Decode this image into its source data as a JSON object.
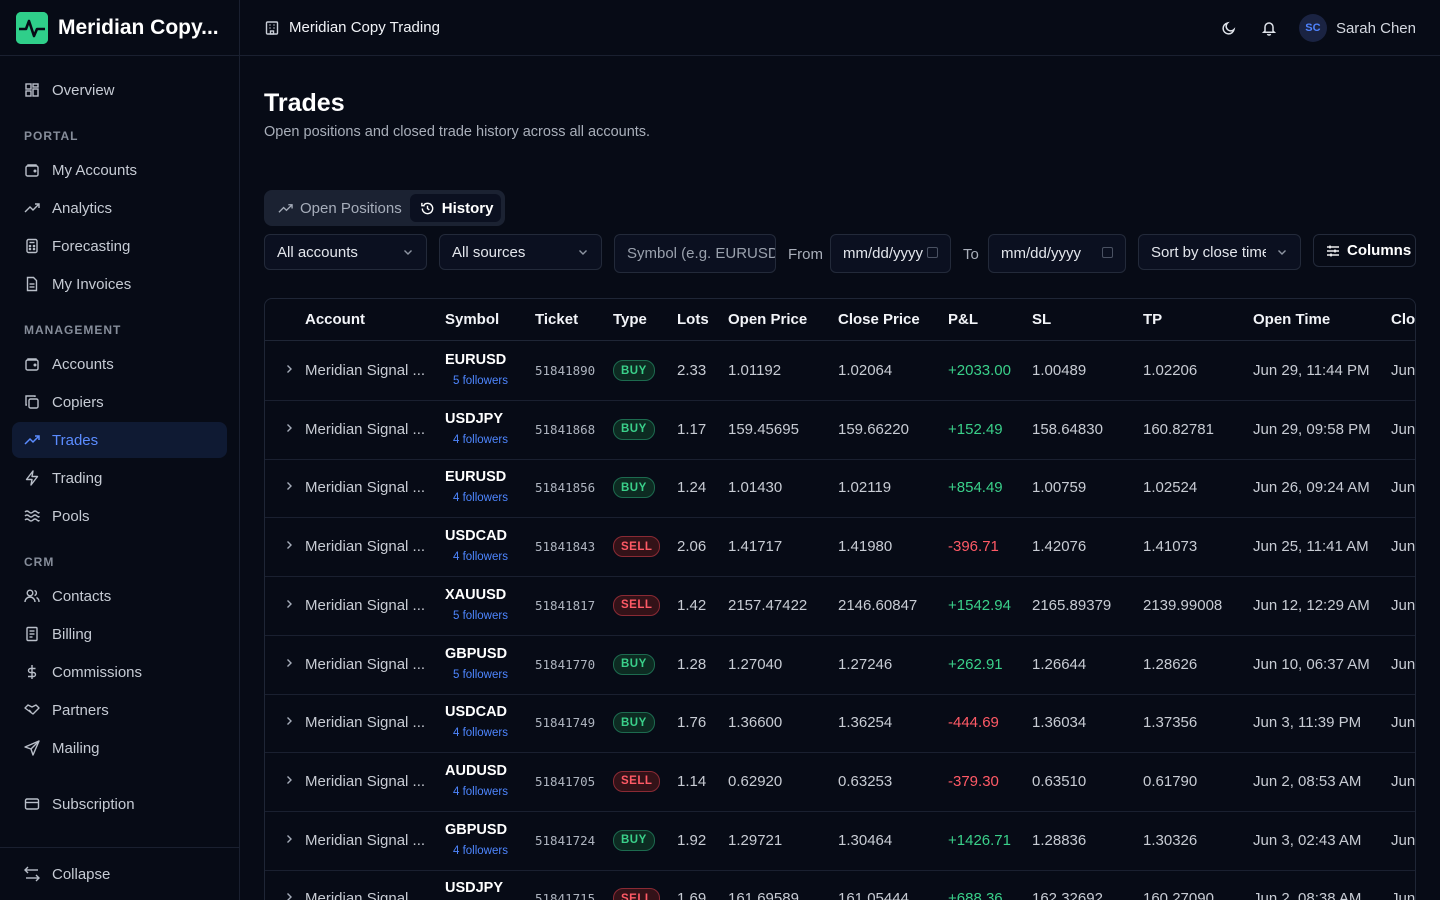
{
  "app": {
    "brand_name": "Meridian Copy...",
    "breadcrumb": "Meridian Copy Trading",
    "user": {
      "initials": "SC",
      "name": "Sarah Chen"
    }
  },
  "sidebar": {
    "overview": "Overview",
    "sections": {
      "portal": "PORTAL",
      "management": "MANAGEMENT",
      "crm": "CRM"
    },
    "portal_items": [
      "My Accounts",
      "Analytics",
      "Forecasting",
      "My Invoices"
    ],
    "management_items": [
      "Accounts",
      "Copiers",
      "Trades",
      "Trading",
      "Pools"
    ],
    "crm_items": [
      "Contacts",
      "Billing",
      "Commissions",
      "Partners",
      "Mailing"
    ],
    "subscription": "Subscription",
    "collapse": "Collapse",
    "active_item": "Trades"
  },
  "page": {
    "title": "Trades",
    "subtitle": "Open positions and closed trade history across all accounts."
  },
  "tabs": [
    {
      "label": "Open Positions",
      "active": false
    },
    {
      "label": "History",
      "active": true
    }
  ],
  "filters": {
    "accounts": "All accounts",
    "sources": "All sources",
    "symbol_placeholder": "Symbol (e.g. EURUSD)",
    "from_label": "From",
    "from_value": "mm/dd/yyyy",
    "to_label": "To",
    "to_value": "mm/dd/yyyy",
    "sort": "Sort by close time",
    "columns_button": "Columns"
  },
  "table": {
    "headers": [
      "Account",
      "Symbol",
      "Ticket",
      "Type",
      "Lots",
      "Open Price",
      "Close Price",
      "P&L",
      "SL",
      "TP",
      "Open Time",
      "Clos"
    ],
    "rows": [
      {
        "account": "Meridian Signal ...",
        "symbol": "EURUSD",
        "followers": "5 followers",
        "ticket": "51841890",
        "type": "BUY",
        "lots": "2.33",
        "open_price": "1.01192",
        "close_price": "1.02064",
        "pnl": "+2033.00",
        "sl": "1.00489",
        "tp": "1.02206",
        "open_time": "Jun 29, 11:44 PM",
        "close_time": "Jun"
      },
      {
        "account": "Meridian Signal ...",
        "symbol": "USDJPY",
        "followers": "4 followers",
        "ticket": "51841868",
        "type": "BUY",
        "lots": "1.17",
        "open_price": "159.45695",
        "close_price": "159.66220",
        "pnl": "+152.49",
        "sl": "158.64830",
        "tp": "160.82781",
        "open_time": "Jun 29, 09:58 PM",
        "close_time": "Jun"
      },
      {
        "account": "Meridian Signal ...",
        "symbol": "EURUSD",
        "followers": "4 followers",
        "ticket": "51841856",
        "type": "BUY",
        "lots": "1.24",
        "open_price": "1.01430",
        "close_price": "1.02119",
        "pnl": "+854.49",
        "sl": "1.00759",
        "tp": "1.02524",
        "open_time": "Jun 26, 09:24 AM",
        "close_time": "Jun"
      },
      {
        "account": "Meridian Signal ...",
        "symbol": "USDCAD",
        "followers": "4 followers",
        "ticket": "51841843",
        "type": "SELL",
        "lots": "2.06",
        "open_price": "1.41717",
        "close_price": "1.41980",
        "pnl": "-396.71",
        "sl": "1.42076",
        "tp": "1.41073",
        "open_time": "Jun 25, 11:41 AM",
        "close_time": "Jun"
      },
      {
        "account": "Meridian Signal ...",
        "symbol": "XAUUSD",
        "followers": "5 followers",
        "ticket": "51841817",
        "type": "SELL",
        "lots": "1.42",
        "open_price": "2157.47422",
        "close_price": "2146.60847",
        "pnl": "+1542.94",
        "sl": "2165.89379",
        "tp": "2139.99008",
        "open_time": "Jun 12, 12:29 AM",
        "close_time": "Jun"
      },
      {
        "account": "Meridian Signal ...",
        "symbol": "GBPUSD",
        "followers": "5 followers",
        "ticket": "51841770",
        "type": "BUY",
        "lots": "1.28",
        "open_price": "1.27040",
        "close_price": "1.27246",
        "pnl": "+262.91",
        "sl": "1.26644",
        "tp": "1.28626",
        "open_time": "Jun 10, 06:37 AM",
        "close_time": "Jun"
      },
      {
        "account": "Meridian Signal ...",
        "symbol": "USDCAD",
        "followers": "4 followers",
        "ticket": "51841749",
        "type": "BUY",
        "lots": "1.76",
        "open_price": "1.36600",
        "close_price": "1.36254",
        "pnl": "-444.69",
        "sl": "1.36034",
        "tp": "1.37356",
        "open_time": "Jun 3, 11:39 PM",
        "close_time": "Jun"
      },
      {
        "account": "Meridian Signal ...",
        "symbol": "AUDUSD",
        "followers": "4 followers",
        "ticket": "51841705",
        "type": "SELL",
        "lots": "1.14",
        "open_price": "0.62920",
        "close_price": "0.63253",
        "pnl": "-379.30",
        "sl": "0.63510",
        "tp": "0.61790",
        "open_time": "Jun 2, 08:53 AM",
        "close_time": "Jun"
      },
      {
        "account": "Meridian Signal ...",
        "symbol": "GBPUSD",
        "followers": "4 followers",
        "ticket": "51841724",
        "type": "BUY",
        "lots": "1.92",
        "open_price": "1.29721",
        "close_price": "1.30464",
        "pnl": "+1426.71",
        "sl": "1.28836",
        "tp": "1.30326",
        "open_time": "Jun 3, 02:43 AM",
        "close_time": "Jun"
      },
      {
        "account": "Meridian Signal ...",
        "symbol": "USDJPY",
        "followers": "",
        "ticket": "51841715",
        "type": "SELL",
        "lots": "1.69",
        "open_price": "161.69589",
        "close_price": "161.05444",
        "pnl": "+688.36",
        "sl": "162.32692",
        "tp": "160.27090",
        "open_time": "Jun 2, 08:38 AM",
        "close_time": "Jun"
      }
    ]
  },
  "colors": {
    "background": "#070b16",
    "accent": "#5b8cff",
    "brand": "#2fcf8a",
    "positive": "#3ad08a",
    "negative": "#ff5a66"
  }
}
